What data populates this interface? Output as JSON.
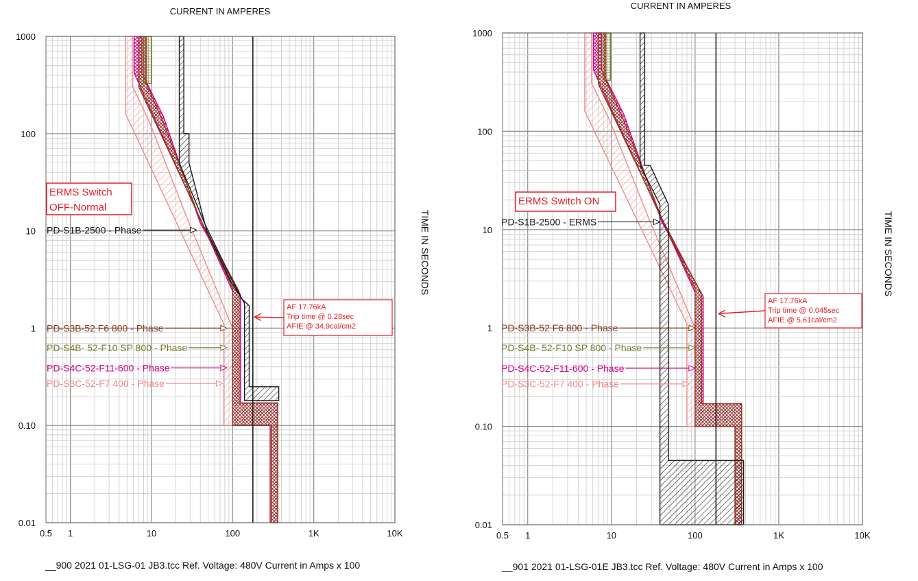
{
  "chart_data": [
    {
      "type": "line",
      "x_axis_title": "CURRENT IN AMPERES",
      "y_axis_title": "TIME IN SECONDS",
      "x_scale": "log",
      "y_scale": "log",
      "xlim": [
        0.5,
        10000
      ],
      "ylim": [
        0.01,
        1000
      ],
      "x_ticks": [
        {
          "v": 0.5,
          "label": "0.5"
        },
        {
          "v": 1,
          "label": "1"
        },
        {
          "v": 10,
          "label": "10"
        },
        {
          "v": 100,
          "label": "100"
        },
        {
          "v": 1000,
          "label": "1K"
        },
        {
          "v": 10000,
          "label": "10K"
        }
      ],
      "y_ticks": [
        {
          "v": 1000,
          "label": "1000"
        },
        {
          "v": 100,
          "label": "100"
        },
        {
          "v": 10,
          "label": "10"
        },
        {
          "v": 1,
          "label": "1"
        },
        {
          "v": 0.1,
          "label": "0.10"
        },
        {
          "v": 0.01,
          "label": "0.01"
        }
      ],
      "grid": true,
      "mode_label": [
        "ERMS Switch",
        "OFF-Normal"
      ],
      "footer": "__900 2021 01-LSG-01 JB3.tcc   Ref. Voltage: 480V   Current in Amps x 100",
      "fault_current_line_x": 177.6,
      "annotation": {
        "lines": [
          "AF 17.76kA",
          "Trip time @ 0.28sec",
          "AFIE @ 34.9cal/cm2"
        ],
        "point": [
          185,
          1.3
        ]
      },
      "series": [
        {
          "name": "PD-S1B-2500 - Phase",
          "color": "#1a1a1a",
          "label_y": 10.2,
          "arrow_to": [
            36,
            10.5
          ],
          "band": [
            [
              25,
              1000
            ],
            [
              25,
              100
            ],
            [
              29,
              100
            ],
            [
              29,
              50
            ],
            [
              48,
              10
            ],
            [
              95,
              3
            ],
            [
              130,
              2
            ],
            [
              160,
              1.7
            ],
            [
              160,
              0.25
            ],
            [
              370,
              0.25
            ],
            [
              370,
              0.18
            ],
            [
              140,
              0.18
            ],
            [
              140,
              1.8
            ],
            [
              110,
              2.6
            ],
            [
              45,
              12
            ],
            [
              22,
              50
            ],
            [
              22,
              1000
            ]
          ]
        },
        {
          "name": "PD-S3B-52 F6 800 - Phase",
          "color": "#8a3a1a",
          "label_y": 1.0,
          "arrow_to": [
            85,
            1.0
          ],
          "band": [
            [
              8.6,
              1000
            ],
            [
              8.6,
              330
            ],
            [
              14,
              130
            ],
            [
              40,
              13
            ],
            [
              120,
              2.4
            ],
            [
              120,
              0.17
            ],
            [
              360,
              0.17
            ],
            [
              360,
              0.01
            ],
            [
              290,
              0.01
            ],
            [
              290,
              0.1
            ],
            [
              100,
              0.1
            ],
            [
              100,
              2.6
            ],
            [
              7,
              300
            ],
            [
              7,
              1000
            ]
          ]
        },
        {
          "name": "PD-S4B- 52-F10 SP 800 - Phase",
          "color": "#7a7a2a",
          "label_y": 0.63,
          "arrow_to": [
            85,
            0.63
          ],
          "band": [
            [
              8,
              1000
            ],
            [
              8,
              330
            ],
            [
              10,
              330
            ],
            [
              10,
              1000
            ]
          ]
        },
        {
          "name": "PD-S4C-52-F11-600 - Phase",
          "color": "#d4008a",
          "label_y": 0.39,
          "arrow_to": [
            85,
            0.39
          ],
          "band": [
            [
              7.6,
              1000
            ],
            [
              7.6,
              420
            ],
            [
              14,
              150
            ],
            [
              40,
              12
            ],
            [
              125,
              2.2
            ],
            [
              125,
              0.17
            ],
            [
              360,
              0.17
            ],
            [
              360,
              0.01
            ],
            [
              300,
              0.01
            ],
            [
              300,
              0.1
            ],
            [
              100,
              0.1
            ],
            [
              100,
              2.4
            ],
            [
              6.1,
              420
            ],
            [
              6.1,
              1000
            ]
          ]
        },
        {
          "name": "PD-S3C-52-F7 400 - Phase",
          "color": "#ee8a8a",
          "label_y": 0.27,
          "arrow_to": [
            75,
            0.27
          ],
          "band": [
            [
              5.8,
              1000
            ],
            [
              5.8,
              310
            ],
            [
              9.5,
              130
            ],
            [
              28,
              13
            ],
            [
              100,
              1.0
            ],
            [
              100,
              0.1
            ],
            [
              78,
              0.1
            ],
            [
              78,
              1.1
            ],
            [
              4.8,
              160
            ],
            [
              4.8,
              1000
            ]
          ]
        }
      ]
    },
    {
      "type": "line",
      "x_axis_title": "CURRENT IN AMPERES",
      "y_axis_title": "TIME IN SECONDS",
      "x_scale": "log",
      "y_scale": "log",
      "xlim": [
        0.5,
        10000
      ],
      "ylim": [
        0.01,
        1000
      ],
      "x_ticks": [
        {
          "v": 0.5,
          "label": "0.5"
        },
        {
          "v": 1,
          "label": "1"
        },
        {
          "v": 10,
          "label": "10"
        },
        {
          "v": 100,
          "label": "100"
        },
        {
          "v": 1000,
          "label": "1K"
        },
        {
          "v": 10000,
          "label": "10K"
        }
      ],
      "y_ticks": [
        {
          "v": 1000,
          "label": "1000"
        },
        {
          "v": 100,
          "label": "100"
        },
        {
          "v": 10,
          "label": "10"
        },
        {
          "v": 1,
          "label": "1"
        },
        {
          "v": 0.1,
          "label": "0.10"
        },
        {
          "v": 0.01,
          "label": "0.01"
        }
      ],
      "grid": true,
      "mode_label": [
        "ERMS Switch ON"
      ],
      "footer": "__901 2021 01-LSG-01E JB3.tcc   Ref. Voltage: 480V   Current in Amps x 100",
      "fault_current_line_x": 177.6,
      "annotation": {
        "lines": [
          "AF 17.76kA",
          "Trip time @ 0.045sec",
          "AFIE @ 5.61cal/cm2"
        ],
        "point": [
          190,
          1.4
        ]
      },
      "series": [
        {
          "name": "PD-S1B-2500 - ERMS",
          "color": "#1a1a1a",
          "label_y": 12,
          "arrow_to": [
            38,
            12.5
          ],
          "band": [
            [
              25,
              1000
            ],
            [
              25,
              45
            ],
            [
              29,
              45
            ],
            [
              48,
              18
            ],
            [
              48,
              0.045
            ],
            [
              380,
              0.045
            ],
            [
              380,
              0.01
            ],
            [
              38,
              0.01
            ],
            [
              38,
              18
            ],
            [
              22,
              45
            ],
            [
              22,
              1000
            ]
          ]
        },
        {
          "name": "PD-S3B-52 F6 800 - Phase",
          "color": "#8a3a1a",
          "label_y": 1.0,
          "arrow_to": [
            100,
            1.0
          ],
          "band": [
            [
              8.6,
              1000
            ],
            [
              8.6,
              330
            ],
            [
              14,
              130
            ],
            [
              40,
              13
            ],
            [
              120,
              2.2
            ],
            [
              120,
              0.17
            ],
            [
              360,
              0.17
            ],
            [
              360,
              0.01
            ],
            [
              300,
              0.01
            ],
            [
              300,
              0.1
            ],
            [
              100,
              0.1
            ],
            [
              100,
              2.5
            ],
            [
              7,
              300
            ],
            [
              7,
              1000
            ]
          ]
        },
        {
          "name": "PD-S4B- 52-F10 SP 800 - Phase",
          "color": "#7a7a2a",
          "label_y": 0.63,
          "arrow_to": [
            100,
            0.63
          ],
          "band": [
            [
              8.2,
              1000
            ],
            [
              8.2,
              330
            ],
            [
              9.8,
              330
            ],
            [
              9.8,
              1000
            ]
          ]
        },
        {
          "name": "PD-S4C-52-F11-600 - Phase",
          "color": "#d4008a",
          "label_y": 0.39,
          "arrow_to": [
            100,
            0.39
          ],
          "band": [
            [
              7.6,
              1000
            ],
            [
              7.6,
              420
            ],
            [
              14,
              150
            ],
            [
              40,
              12
            ],
            [
              125,
              2.1
            ],
            [
              125,
              0.17
            ],
            [
              360,
              0.17
            ],
            [
              360,
              0.01
            ],
            [
              300,
              0.01
            ],
            [
              300,
              0.1
            ],
            [
              100,
              0.1
            ],
            [
              100,
              2.3
            ],
            [
              6.1,
              420
            ],
            [
              6.1,
              1000
            ]
          ]
        },
        {
          "name": "PD-S3C-52-F7 400 - Phase",
          "color": "#ee8a8a",
          "label_y": 0.27,
          "arrow_to": [
            85,
            0.27
          ],
          "band": [
            [
              5.8,
              1000
            ],
            [
              5.8,
              310
            ],
            [
              9.5,
              130
            ],
            [
              28,
              13
            ],
            [
              100,
              1.0
            ],
            [
              100,
              0.1
            ],
            [
              80,
              0.1
            ],
            [
              80,
              1.1
            ],
            [
              4.8,
              160
            ],
            [
              4.8,
              1000
            ]
          ]
        }
      ]
    }
  ]
}
